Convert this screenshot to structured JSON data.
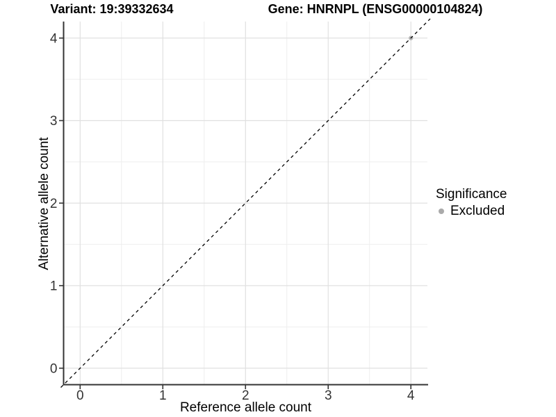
{
  "header": {
    "title_left": "Variant: 19:39332634",
    "title_right": "Gene: HNRNPL (ENSG00000104824)"
  },
  "chart_data": {
    "type": "scatter",
    "title_left": "Variant: 19:39332634",
    "title_right": "Gene: HNRNPL (ENSG00000104824)",
    "xlabel": "Reference allele count",
    "ylabel": "Alternative allele count",
    "xlim": [
      -0.2,
      4.2
    ],
    "ylim": [
      -0.2,
      4.2
    ],
    "x_ticks": [
      0,
      1,
      2,
      3,
      4
    ],
    "y_ticks": [
      0,
      1,
      2,
      3,
      4
    ],
    "x_minor_ticks": [
      0.5,
      1.5,
      2.5,
      3.5
    ],
    "y_minor_ticks": [
      0.5,
      1.5,
      2.5,
      3.5
    ],
    "grid": "major and minor, light gray on white",
    "reference_line": {
      "type": "abline",
      "slope": 1,
      "intercept": 0,
      "linestyle": "dashed",
      "color": "#000000"
    },
    "series": [
      {
        "name": "Excluded",
        "marker": "circle",
        "color": "#b0b0b0",
        "points": [
          {
            "x": 4,
            "y": 4
          }
        ]
      }
    ],
    "legend": {
      "title": "Significance",
      "position": "right",
      "items": [
        {
          "label": "Excluded",
          "color": "#aaaaaa"
        }
      ]
    }
  },
  "colors": {
    "background": "#ffffff",
    "grid_major": "#e0e0e0",
    "grid_minor": "#eeeeee",
    "axis_line": "#333333",
    "tick_label": "#333333",
    "title_text": "#000000",
    "point": "#b0b0b0"
  }
}
